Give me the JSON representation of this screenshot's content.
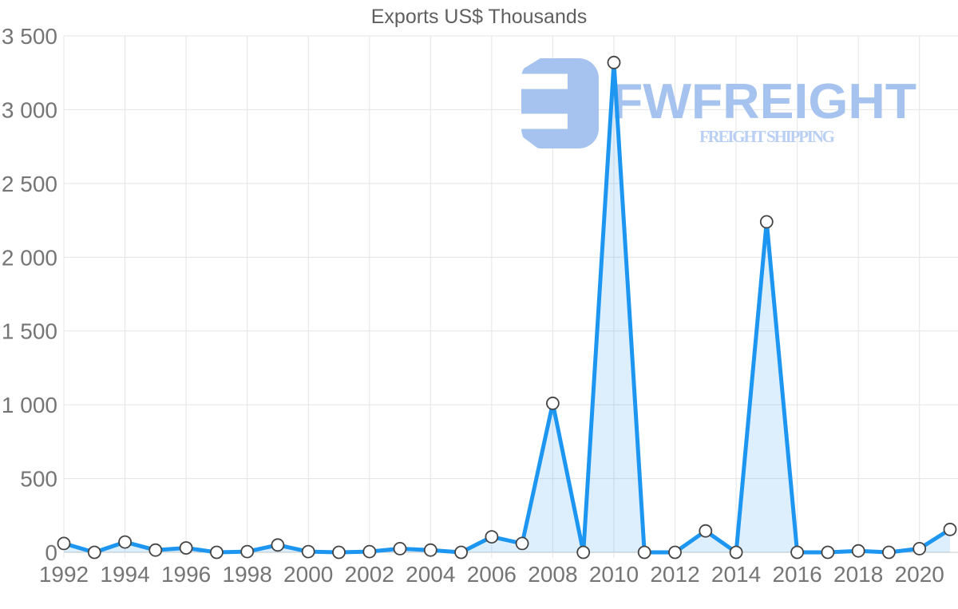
{
  "chart_data": {
    "type": "area",
    "title": "Exports US$ Thousands",
    "x": [
      1992,
      1993,
      1994,
      1995,
      1996,
      1997,
      1998,
      1999,
      2000,
      2001,
      2002,
      2003,
      2004,
      2005,
      2006,
      2007,
      2008,
      2009,
      2010,
      2011,
      2012,
      2013,
      2014,
      2015,
      2016,
      2017,
      2018,
      2019,
      2020,
      2021
    ],
    "values": [
      60,
      0,
      70,
      15,
      30,
      0,
      5,
      50,
      5,
      0,
      5,
      25,
      15,
      0,
      105,
      60,
      1010,
      0,
      3320,
      0,
      0,
      145,
      0,
      2240,
      0,
      0,
      10,
      0,
      25,
      155
    ],
    "ylim": [
      0,
      3500
    ],
    "y_tick_step": 500,
    "y_tick_labels": [
      "0",
      "500",
      "1 000",
      "1 500",
      "2 000",
      "2 500",
      "3 000",
      "3 500"
    ],
    "x_tick_labels": [
      "1992",
      "1994",
      "1996",
      "1998",
      "2000",
      "2002",
      "2004",
      "2006",
      "2008",
      "2010",
      "2012",
      "2014",
      "2016",
      "2018",
      "2020"
    ],
    "grid": true,
    "legend": "none",
    "colors": {
      "line": "#1D96F2",
      "fill": "#1D96F2",
      "fill_opacity": 0.15,
      "marker_fill": "#FFFFFF",
      "marker_stroke": "#444444",
      "grid": "#E4E4E4",
      "axis": "#C7C7C7",
      "tick_label": "#757575",
      "title": "#5F5F5F"
    }
  },
  "watermark": {
    "brand": "FWFREIGHT",
    "tagline": "FREIGHT SHIPPING",
    "brand_color": "#A6C3EF",
    "tagline_color": "#B9CFF3",
    "logo_icon": "fwfreight-logo-icon"
  }
}
